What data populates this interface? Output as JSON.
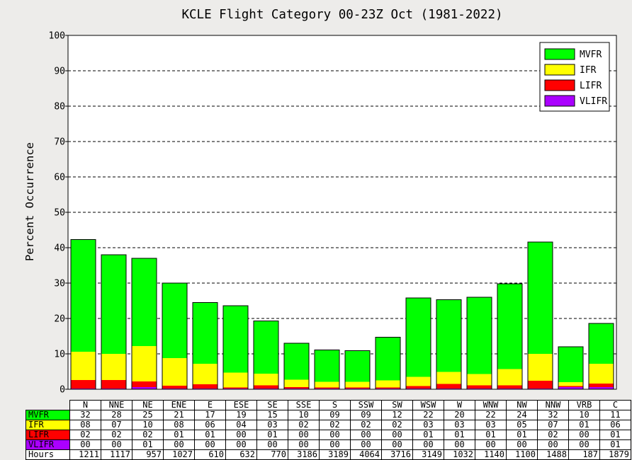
{
  "chart_data": {
    "type": "bar",
    "stacked": true,
    "title": "KCLE Flight Category 00-23Z Oct (1981-2022)",
    "xlabel": "",
    "ylabel": "Percent Occurrence",
    "ylim": [
      0,
      100
    ],
    "yticks": [
      "0",
      "10",
      "20",
      "30",
      "40",
      "50",
      "60",
      "70",
      "80",
      "90",
      "100"
    ],
    "grid": "horizontal dashed",
    "legend_position": "top-right",
    "categories": [
      "N",
      "NNE",
      "NE",
      "ENE",
      "E",
      "ESE",
      "SE",
      "SSE",
      "S",
      "SSW",
      "SW",
      "WSW",
      "W",
      "WNW",
      "NW",
      "NNW",
      "VRB",
      "C"
    ],
    "series": [
      {
        "name": "VLIFR",
        "color": "#aa00ff",
        "values": [
          0.2,
          0.2,
          0.6,
          0.2,
          0.2,
          0.2,
          0.2,
          0.2,
          0.2,
          0.2,
          0.2,
          0.2,
          0.2,
          0.2,
          0.2,
          0.2,
          0.6,
          0.6
        ]
      },
      {
        "name": "LIFR",
        "color": "#ff0000",
        "values": [
          2.4,
          2.4,
          1.6,
          0.8,
          1.2,
          0.3,
          0.9,
          0.4,
          0.3,
          0.3,
          0.3,
          0.7,
          1.3,
          0.9,
          0.9,
          2.2,
          0.3,
          1.0
        ]
      },
      {
        "name": "IFR",
        "color": "#ffff00",
        "values": [
          8.0,
          7.4,
          10.0,
          7.8,
          5.8,
          4.2,
          3.3,
          2.1,
          1.6,
          1.6,
          2.0,
          2.6,
          3.4,
          3.2,
          4.6,
          7.6,
          1.1,
          5.6
        ]
      },
      {
        "name": "MVFR",
        "color": "#00ff00",
        "values": [
          31.7,
          28.0,
          24.8,
          21.2,
          17.3,
          18.9,
          14.9,
          10.3,
          9.0,
          8.8,
          12.2,
          22.3,
          20.4,
          21.7,
          24.1,
          31.6,
          10.0,
          11.4
        ]
      }
    ],
    "legend_entries": [
      "MVFR",
      "IFR",
      "LIFR",
      "VLIFR"
    ],
    "table": {
      "rows": [
        {
          "label": "MVFR",
          "color": "#00ff00",
          "values": [
            "32",
            "28",
            "25",
            "21",
            "17",
            "19",
            "15",
            "10",
            "09",
            "09",
            "12",
            "22",
            "20",
            "22",
            "24",
            "32",
            "10",
            "11"
          ]
        },
        {
          "label": "IFR",
          "color": "#ffff00",
          "values": [
            "08",
            "07",
            "10",
            "08",
            "06",
            "04",
            "03",
            "02",
            "02",
            "02",
            "02",
            "03",
            "03",
            "03",
            "05",
            "07",
            "01",
            "06"
          ]
        },
        {
          "label": "LIFR",
          "color": "#ff0000",
          "values": [
            "02",
            "02",
            "02",
            "01",
            "01",
            "00",
            "01",
            "00",
            "00",
            "00",
            "00",
            "01",
            "01",
            "01",
            "01",
            "02",
            "00",
            "01"
          ]
        },
        {
          "label": "VLIFR",
          "color": "#aa00ff",
          "values": [
            "00",
            "00",
            "01",
            "00",
            "00",
            "00",
            "00",
            "00",
            "00",
            "00",
            "00",
            "00",
            "00",
            "00",
            "00",
            "00",
            "00",
            "01"
          ]
        },
        {
          "label": "Hours",
          "color": "#ffffff",
          "values": [
            "1211",
            "1117",
            "957",
            "1027",
            "610",
            "632",
            "770",
            "3186",
            "3189",
            "4064",
            "3716",
            "3149",
            "1032",
            "1140",
            "1100",
            "1488",
            "187",
            "1879"
          ]
        }
      ]
    }
  }
}
